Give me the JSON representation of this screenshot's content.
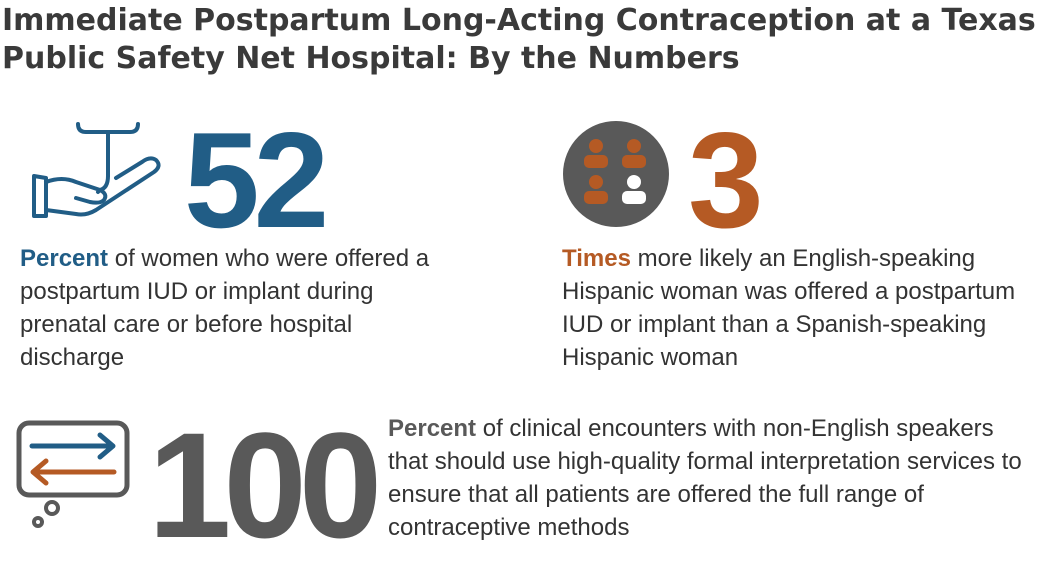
{
  "title": "Immediate Postpartum Long-Acting Contraception at a Texas Public Safety Net Hospital: By the Numbers",
  "colors": {
    "blue": "#215d86",
    "orange": "#b55a24",
    "gray": "#595959"
  },
  "stats": [
    {
      "number": "52",
      "keyword": "Percent",
      "text": "of women who were offered a postpartum IUD or implant during prenatal care or before hospital discharge",
      "icon": "hand-iud-icon"
    },
    {
      "number": "3",
      "keyword": "Times",
      "text": "more likely an English-speaking Hispanic woman was offered a postpartum IUD or implant than a Spanish-speaking Hispanic woman",
      "icon": "people-group-icon"
    },
    {
      "number": "100",
      "keyword": "Percent",
      "text": "of clinical encounters with non-English speakers that should use high-quality formal interpretation services to ensure that all patients are offered the full range of contraceptive methods",
      "icon": "interpretation-bubble-icon"
    }
  ]
}
